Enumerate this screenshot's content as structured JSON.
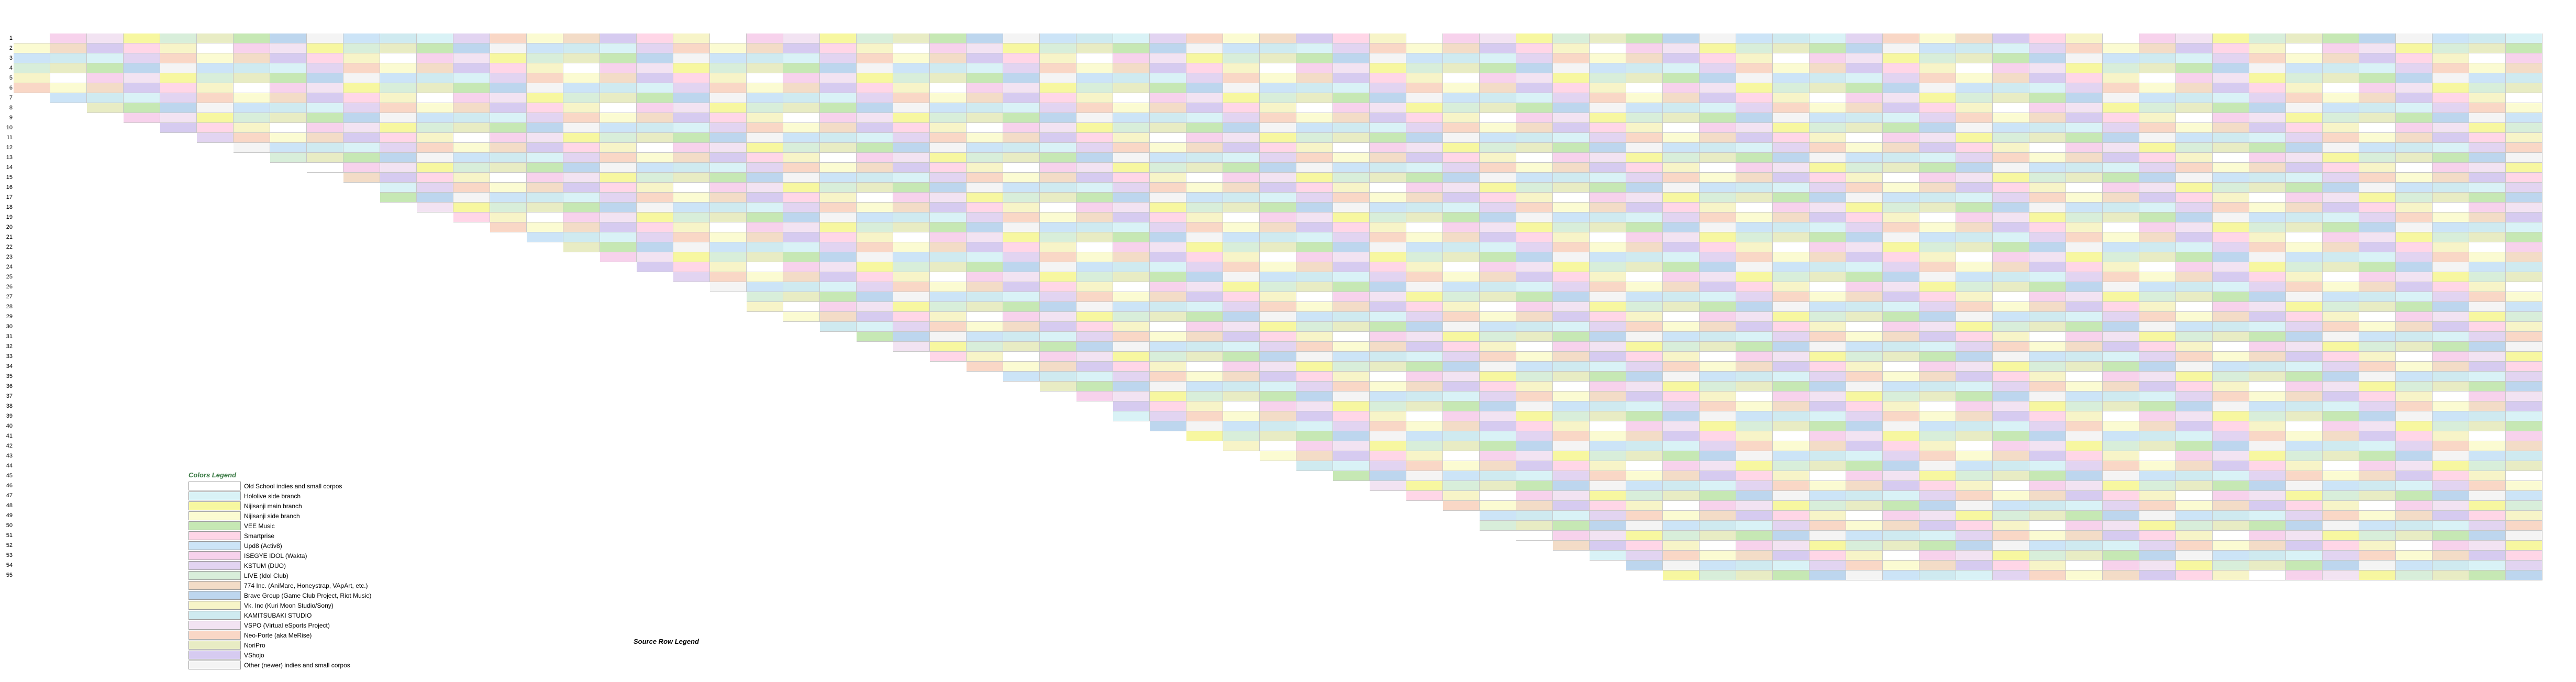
{
  "legend": {
    "title": "Colors Legend",
    "items": [
      {
        "label": "Old School indies and small corpos",
        "color": "#ffffff"
      },
      {
        "label": "Hololive side branch",
        "color": "#d9f2f6"
      },
      {
        "label": "Nijisanji main branch",
        "color": "#f7f7a0"
      },
      {
        "label": "Nijisanji side branch",
        "color": "#fbfbd2"
      },
      {
        "label": "VEE Music",
        "color": "#c6e8b4"
      },
      {
        "label": "Smartprise",
        "color": "#ffd6e7"
      },
      {
        "label": "Upd8 (Activ8)",
        "color": "#cce4f7"
      },
      {
        "label": "ISEGYE IDOL (Wakta)",
        "color": "#f7d2ec"
      },
      {
        "label": "KSTUM (DUO)",
        "color": "#e2d4f1"
      },
      {
        "label": "LIVE (Idol Club)",
        "color": "#d8eeda"
      },
      {
        "label": "774 Inc. (AniMare, Honeystrap, VApArt, etc.)",
        "color": "#f3dcc7"
      },
      {
        "label": "Brave Group (Game Club Project, Riot Music)",
        "color": "#bdd6ee"
      },
      {
        "label": "Vk. Inc (Kuri Moon Studio/Sony)",
        "color": "#f7f4c8"
      },
      {
        "label": "KAMITSUBAKI STUDIO",
        "color": "#cfeaf0"
      },
      {
        "label": "VSPO (Virtual eSports Project)",
        "color": "#f2e3f2"
      },
      {
        "label": "Neo-Porte (aka MeRise)",
        "color": "#f9d7c6"
      },
      {
        "label": "NoriPro",
        "color": "#e8ecc4"
      },
      {
        "label": "VShojo",
        "color": "#d6cbf0"
      },
      {
        "label": "Other (newer) indies and small corpos",
        "color": "#f4f4f4"
      }
    ]
  },
  "source": {
    "title": "Source Row Legend",
    "lines": []
  },
  "grid": {
    "columns": 69,
    "rows": 55
  }
}
